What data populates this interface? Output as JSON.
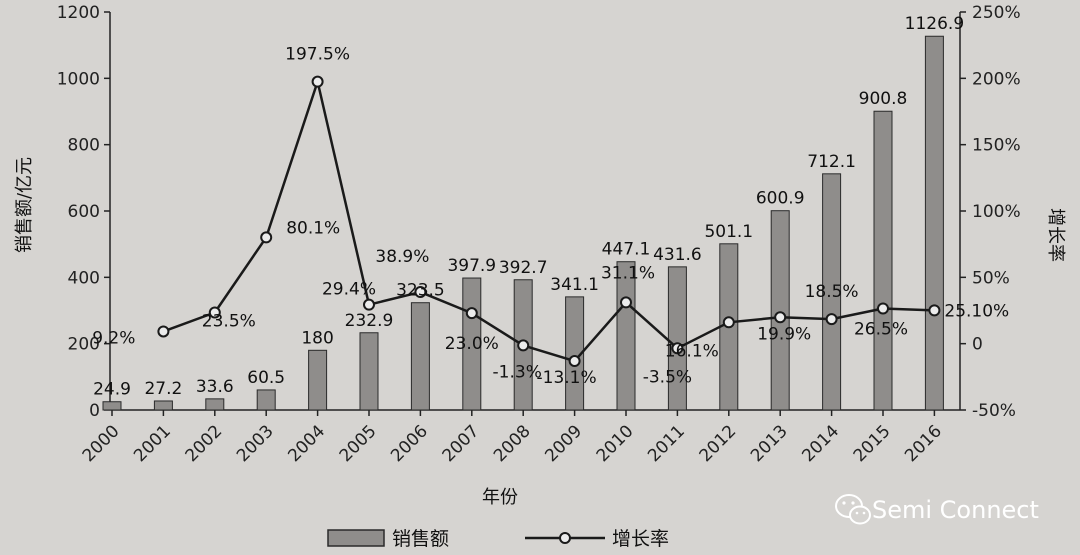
{
  "chart_data": {
    "type": "bar",
    "categories": [
      "2000",
      "2001",
      "2002",
      "2003",
      "2004",
      "2005",
      "2006",
      "2007",
      "2008",
      "2009",
      "2010",
      "2011",
      "2012",
      "2013",
      "2014",
      "2015",
      "2016"
    ],
    "series": [
      {
        "name": "销售额",
        "type": "bar",
        "axis": "left",
        "values": [
          24.9,
          27.2,
          33.6,
          60.5,
          180,
          232.9,
          323.5,
          397.9,
          392.7,
          341.1,
          447.1,
          431.6,
          501.1,
          600.9,
          712.1,
          900.8,
          1126.9
        ],
        "labels": [
          "24.9",
          "27.2",
          "33.6",
          "60.5",
          "180",
          "232.9",
          "323.5",
          "397.9",
          "392.7",
          "341.1",
          "447.1",
          "431.6",
          "501.1",
          "600.9",
          "712.1",
          "900.8",
          "1126.9"
        ]
      },
      {
        "name": "增长率",
        "type": "line",
        "axis": "right",
        "values": [
          null,
          9.2,
          23.5,
          80.1,
          197.5,
          29.4,
          38.9,
          23.0,
          -1.3,
          -13.1,
          31.1,
          -3.5,
          16.1,
          19.9,
          18.5,
          26.5,
          25.1
        ],
        "labels": [
          "",
          "9.2%",
          "23.5%",
          "80.1%",
          "197.5%",
          "29.4%",
          "38.9%",
          "23.0%",
          "-1.3%",
          "-13.1%",
          "31.1%",
          "-3.5%",
          "16.1%",
          "19.9%",
          "18.5%",
          "26.5%",
          "25.10%"
        ]
      }
    ],
    "title": "",
    "xlabel": "年份",
    "ylabel": "销售额/亿元",
    "y2label": "增长率",
    "ylim": [
      0,
      1200
    ],
    "y2lim": [
      -50,
      250
    ],
    "yticks": [
      "0",
      "200",
      "400",
      "600",
      "800",
      "1000",
      "1200"
    ],
    "y2ticks": [
      "-50%",
      "0",
      "50%",
      "100%",
      "150%",
      "200%",
      "250%"
    ],
    "grid": false,
    "legend_position": "bottom",
    "colors": {
      "bar_fill": "#8f8d8b",
      "bar_stroke": "#2a2a2a",
      "line": "#1a1a1a",
      "background": "#d6d4d1"
    }
  },
  "watermark": {
    "text": "Semi Connect",
    "icon": "wechat-icon"
  }
}
